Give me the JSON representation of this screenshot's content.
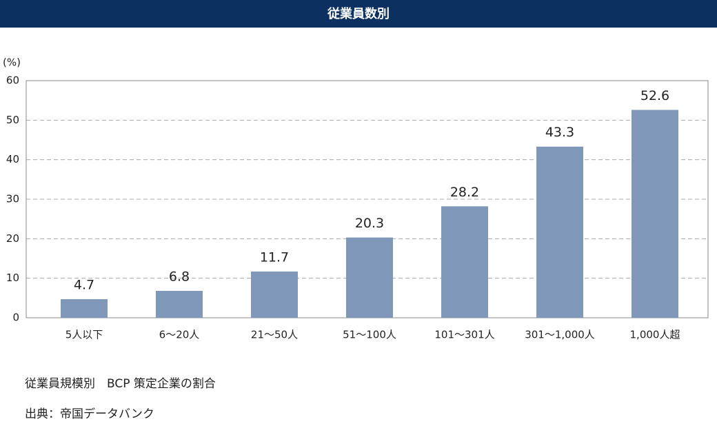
{
  "chart_data": {
    "type": "bar",
    "title": "従業員数別",
    "ylabel": "(%)",
    "categories": [
      "5人以下",
      "6～20人",
      "21～50人",
      "51～100人",
      "101～301人",
      "301～1,000人",
      "1,000人超"
    ],
    "values": [
      4.7,
      6.8,
      11.7,
      20.3,
      28.2,
      43.3,
      52.6
    ],
    "color": "#7f98b9",
    "ylim": [
      0,
      60
    ],
    "yticks": [
      0,
      10,
      20,
      30,
      40,
      50,
      60
    ],
    "grid": true,
    "notes": [
      "従業員規模別　BCP 策定企業の割合",
      "出典：帝国データバンク"
    ]
  }
}
